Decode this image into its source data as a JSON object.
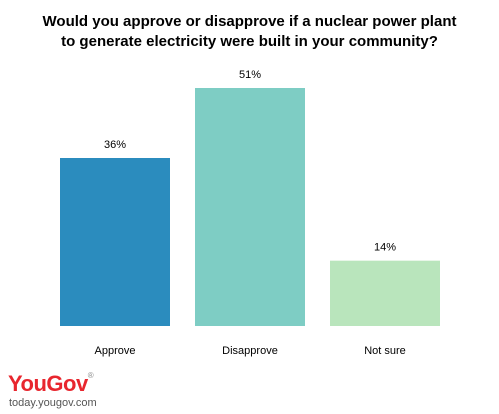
{
  "title_lines": [
    "Would you approve or disapprove if a nuclear power plant",
    "to generate electricity were built in your community?"
  ],
  "chart_data": {
    "type": "bar",
    "title": "Would you approve or disapprove if a nuclear power plant to generate electricity were built in your community?",
    "categories": [
      "Approve",
      "Disapprove",
      "Not sure"
    ],
    "values": [
      36,
      51,
      14
    ],
    "value_labels": [
      "36%",
      "51%",
      "14%"
    ],
    "colors": [
      "#2b8cbe",
      "#7ecdc4",
      "#b9e5bc"
    ],
    "ylim": [
      0,
      51
    ],
    "grid": false,
    "legend": "none"
  },
  "brand": {
    "logo_text": "YouGov",
    "website": "today.yougov.com",
    "color": "#e8262e"
  }
}
